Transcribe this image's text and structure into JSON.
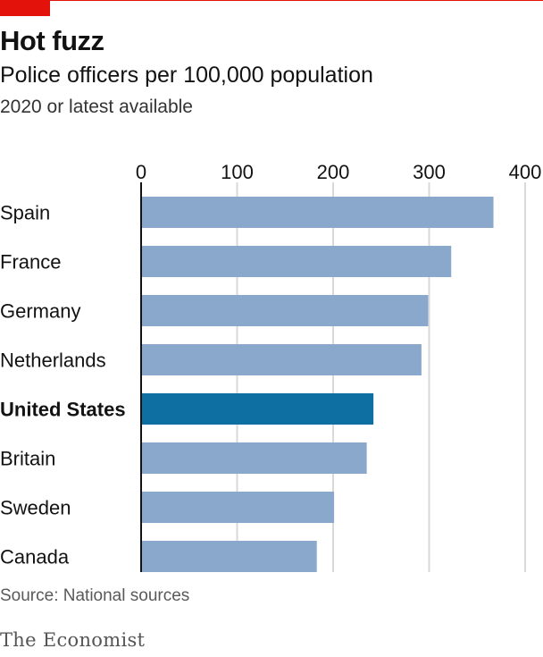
{
  "header": {
    "title": "Hot fuzz",
    "subtitle": "Police officers per 100,000 population",
    "note": "2020 or latest available"
  },
  "footer": {
    "source": "Source: National sources",
    "brand": "The Economist"
  },
  "colors": {
    "accent": "#e3120b",
    "bar": "#8aa8cb",
    "highlight": "#0e6fa3",
    "gridline": "#d9d9d9",
    "axis": "#121212"
  },
  "chart_data": {
    "type": "bar",
    "orientation": "horizontal",
    "title": "Hot fuzz",
    "categories": [
      "Spain",
      "France",
      "Germany",
      "Netherlands",
      "United States",
      "Britain",
      "Sweden",
      "Canada"
    ],
    "values": [
      367,
      323,
      299,
      292,
      242,
      235,
      201,
      183
    ],
    "highlight": "United States",
    "xlim": [
      0,
      400
    ],
    "xticks": [
      "0",
      "100",
      "200",
      "300",
      "400"
    ],
    "tick_values": [
      0,
      100,
      200,
      300,
      400
    ],
    "xlabel": "",
    "ylabel": "",
    "grid": true,
    "legend": "none"
  }
}
